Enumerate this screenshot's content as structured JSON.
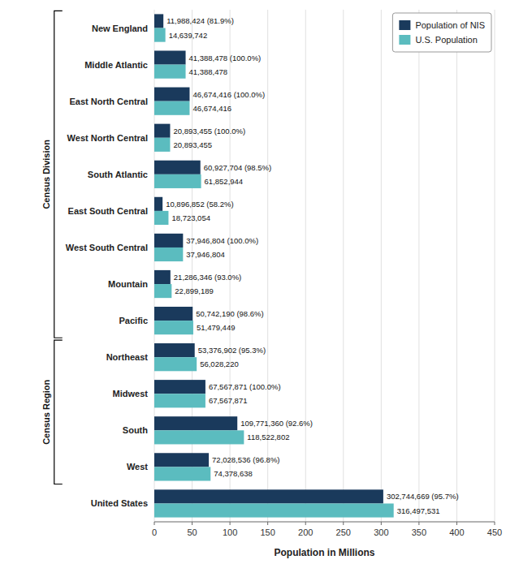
{
  "chart_data": {
    "type": "bar",
    "orientation": "horizontal",
    "categories": [
      "New England",
      "Middle Atlantic",
      "East North Central",
      "West North Central",
      "South Atlantic",
      "East South Central",
      "West South Central",
      "Mountain",
      "Pacific",
      "Northeast",
      "Midwest",
      "South",
      "West",
      "United States"
    ],
    "series": [
      {
        "name": "Population of NIS",
        "color": "#1a3a5c",
        "values": [
          11988424,
          41388478,
          46674416,
          20893455,
          60927704,
          10896852,
          37946804,
          21286346,
          50742190,
          53376902,
          67567871,
          109771360,
          72028536,
          302744669
        ],
        "value_labels": [
          "11,988,424 (81.9%)",
          "41,388,478 (100.0%)",
          "46,674,416 (100.0%)",
          "20,893,455 (100.0%)",
          "60,927,704 (98.5%)",
          "10,896,852 (58.2%)",
          "37,946,804 (100.0%)",
          "21,286,346 (93.0%)",
          "50,742,190 (98.6%)",
          "53,376,902 (95.3%)",
          "67,567,871 (100.0%)",
          "109,771,360 (92.6%)",
          "72,028,536 (96.8%)",
          "302,744,669 (95.7%)"
        ]
      },
      {
        "name": "U.S. Population",
        "color": "#5bbcbf",
        "values": [
          14639742,
          41388478,
          46674416,
          20893455,
          61852944,
          18723054,
          37946804,
          22899189,
          51479449,
          56028220,
          67567871,
          118522802,
          74378638,
          316497531
        ],
        "value_labels": [
          "14,639,742",
          "41,388,478",
          "46,674,416",
          "20,893,455",
          "61,852,944",
          "18,723,054",
          "37,946,804",
          "22,899,189",
          "51,479,449",
          "56,028,220",
          "67,567,871",
          "118,522,802",
          "74,378,638",
          "316,497,531"
        ]
      }
    ],
    "xlabel": "Population in Millions",
    "xlim": [
      0,
      450000000
    ],
    "xticks": [
      0,
      {
        "value": 50000000,
        "label": "50"
      },
      {
        "value": 100000000,
        "label": "100"
      },
      {
        "value": 150000000,
        "label": "150"
      },
      {
        "value": 200000000,
        "label": "200"
      },
      {
        "value": 250000000,
        "label": "250"
      },
      {
        "value": 300000000,
        "label": "300"
      },
      {
        "value": 350000000,
        "label": "350"
      },
      {
        "value": 400000000,
        "label": "400"
      },
      {
        "value": 450000000,
        "label": "450"
      }
    ],
    "annotations": [
      {
        "text": "Census Division",
        "from": "New England",
        "to": "Pacific"
      },
      {
        "text": "Census Region",
        "from": "Northeast",
        "to": "West"
      }
    ],
    "grid": true,
    "legend": "upper right",
    "data_labels": true
  }
}
